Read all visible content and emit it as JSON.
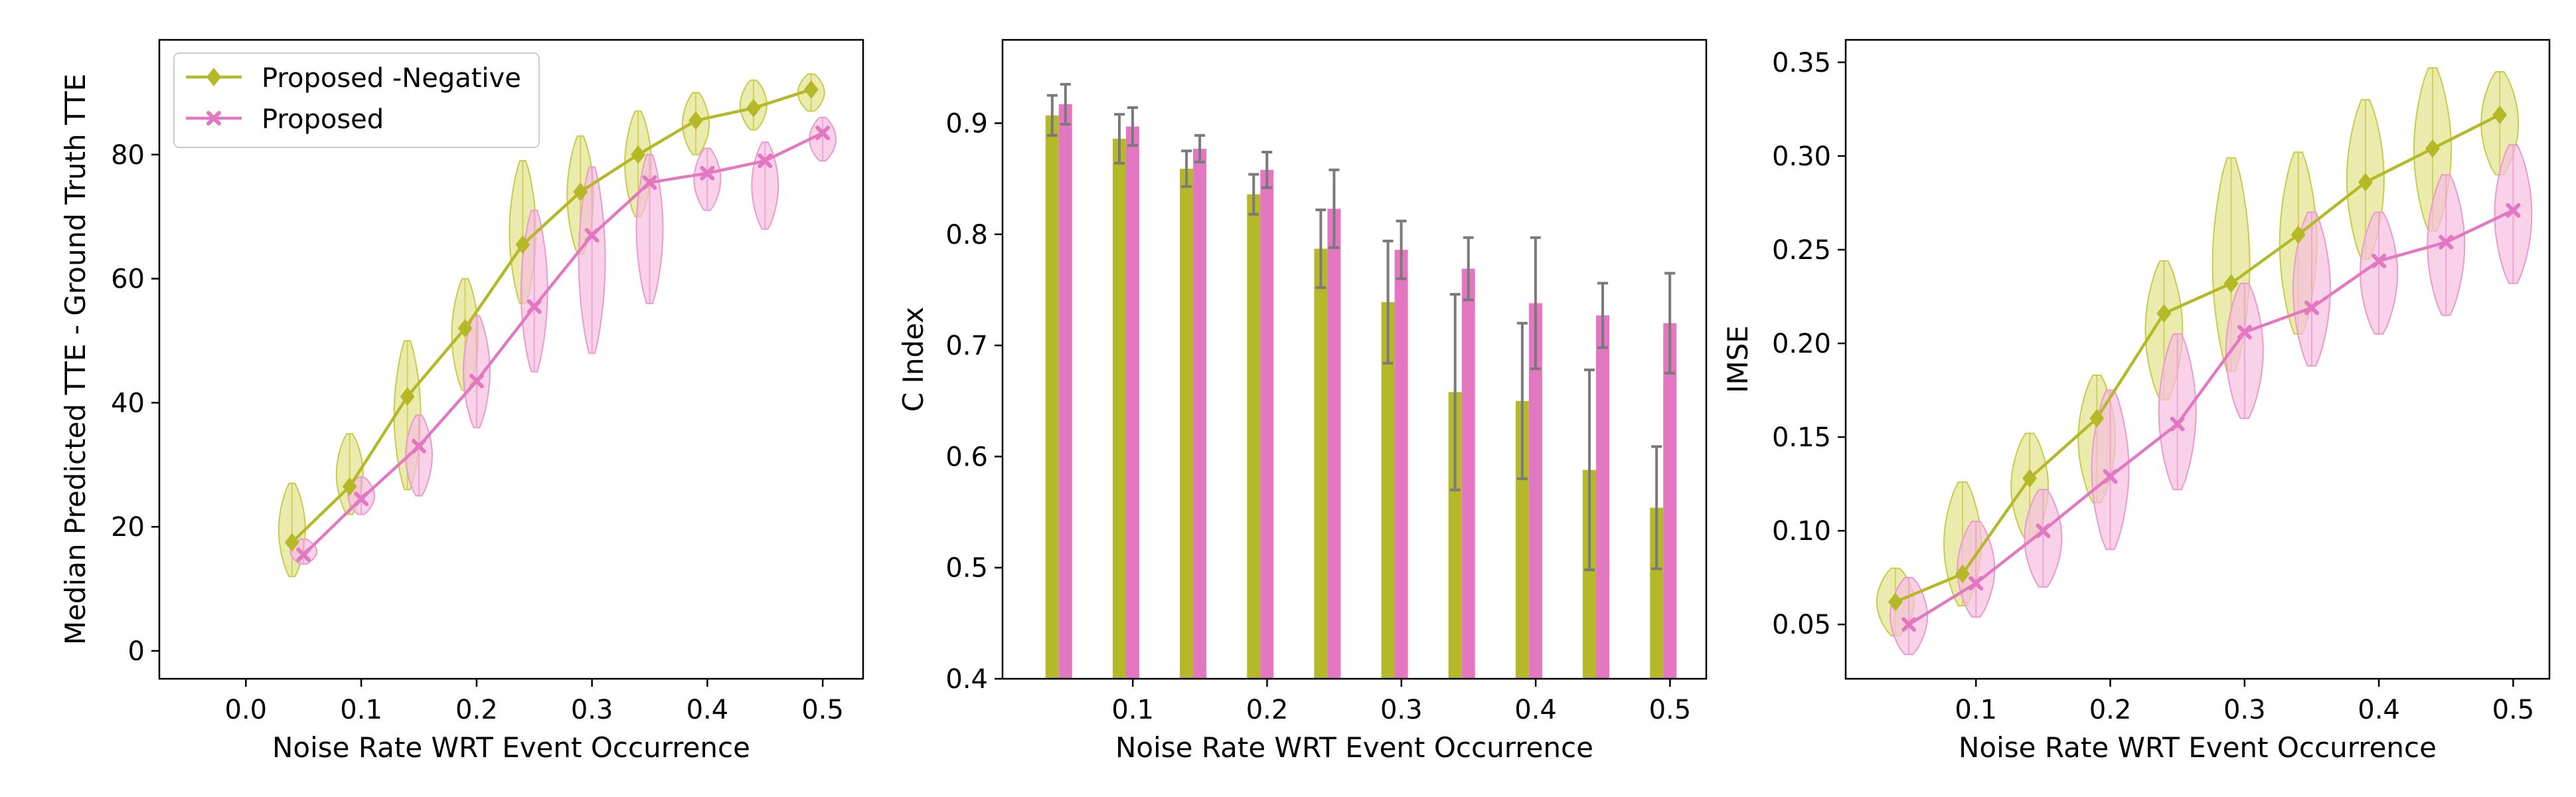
{
  "colors": {
    "proposed_negative": "#b5b927",
    "proposed": "#e377c2",
    "violin_negative_fill": "#e2e28c",
    "violin_negative_edge": "#c9cb4a",
    "violin_proposed_fill": "#f7bfdf",
    "violin_proposed_edge": "#ea9bce",
    "error_bar": "#7a7a7a"
  },
  "chart_data": [
    {
      "type": "line",
      "xlabel": "Noise Rate WRT Event Occurrence",
      "ylabel": "Median Predicted TTE - Ground Truth TTE",
      "xlim": [
        -0.075,
        0.535
      ],
      "ylim": [
        -4.5,
        98.5
      ],
      "xticks": [
        "0.0",
        "0.1",
        "0.2",
        "0.3",
        "0.4",
        "0.5"
      ],
      "yticks": [
        "0",
        "20",
        "40",
        "60",
        "80"
      ],
      "legend": {
        "placement": "top-left",
        "entries": [
          "Proposed -Negative",
          "Proposed"
        ]
      },
      "series": [
        {
          "name": "Proposed -Negative",
          "marker": "diamond",
          "x": [
            0.04,
            0.09,
            0.14,
            0.19,
            0.24,
            0.29,
            0.34,
            0.39,
            0.44,
            0.49
          ],
          "y": [
            17.5,
            26.5,
            41,
            52,
            65.5,
            74,
            80,
            85.5,
            87.5,
            90.5
          ],
          "violins": [
            [
              12,
              27
            ],
            [
              22,
              35
            ],
            [
              26,
              50
            ],
            [
              42,
              60
            ],
            [
              56,
              79
            ],
            [
              64,
              83
            ],
            [
              70,
              87
            ],
            [
              80,
              90
            ],
            [
              84,
              92
            ],
            [
              87,
              93
            ]
          ]
        },
        {
          "name": "Proposed",
          "marker": "x",
          "x": [
            0.05,
            0.1,
            0.15,
            0.2,
            0.25,
            0.3,
            0.35,
            0.4,
            0.45,
            0.5
          ],
          "y": [
            15.5,
            24.5,
            33,
            43.5,
            55.5,
            67,
            75.5,
            77,
            79,
            83.5
          ],
          "violins": [
            [
              14,
              18
            ],
            [
              22,
              28
            ],
            [
              25,
              38
            ],
            [
              36,
              54
            ],
            [
              45,
              71
            ],
            [
              48,
              78
            ],
            [
              56,
              80
            ],
            [
              71,
              81
            ],
            [
              68,
              82
            ],
            [
              79,
              86
            ]
          ]
        }
      ]
    },
    {
      "type": "bar",
      "xlabel": "Noise Rate WRT Event Occurrence",
      "ylabel": "C Index",
      "xlim": [
        0.003,
        0.527
      ],
      "ylim": [
        0.4,
        0.975
      ],
      "xticks": [
        "0.1",
        "0.2",
        "0.3",
        "0.4",
        "0.5"
      ],
      "yticks": [
        "0.4",
        "0.5",
        "0.6",
        "0.7",
        "0.8",
        "0.9"
      ],
      "x": [
        0.04,
        0.09,
        0.14,
        0.19,
        0.24,
        0.29,
        0.34,
        0.39,
        0.44,
        0.49
      ],
      "series": [
        {
          "name": "Proposed -Negative",
          "values": [
            0.907,
            0.886,
            0.859,
            0.836,
            0.787,
            0.739,
            0.658,
            0.65,
            0.588,
            0.554
          ],
          "errors": [
            0.018,
            0.022,
            0.016,
            0.018,
            0.035,
            0.055,
            0.088,
            0.07,
            0.09,
            0.055
          ]
        },
        {
          "name": "Proposed",
          "values": [
            0.917,
            0.897,
            0.877,
            0.858,
            0.823,
            0.786,
            0.769,
            0.738,
            0.727,
            0.72
          ],
          "errors": [
            0.018,
            0.017,
            0.012,
            0.016,
            0.035,
            0.026,
            0.028,
            0.059,
            0.029,
            0.045
          ]
        }
      ]
    },
    {
      "type": "line",
      "xlabel": "Noise Rate WRT Event Occurrence",
      "ylabel": "IMSE",
      "xlim": [
        0.003,
        0.527
      ],
      "ylim": [
        0.021,
        0.362
      ],
      "xticks": [
        "0.1",
        "0.2",
        "0.3",
        "0.4",
        "0.5"
      ],
      "yticks": [
        "0.05",
        "0.10",
        "0.15",
        "0.20",
        "0.25",
        "0.30",
        "0.35"
      ],
      "series": [
        {
          "name": "Proposed -Negative",
          "marker": "diamond",
          "x": [
            0.04,
            0.09,
            0.14,
            0.19,
            0.24,
            0.29,
            0.34,
            0.39,
            0.44,
            0.49
          ],
          "y": [
            0.062,
            0.077,
            0.128,
            0.16,
            0.216,
            0.232,
            0.258,
            0.286,
            0.304,
            0.322
          ],
          "violins": [
            [
              0.044,
              0.08
            ],
            [
              0.06,
              0.126
            ],
            [
              0.095,
              0.152
            ],
            [
              0.115,
              0.183
            ],
            [
              0.17,
              0.244
            ],
            [
              0.185,
              0.299
            ],
            [
              0.205,
              0.302
            ],
            [
              0.245,
              0.33
            ],
            [
              0.26,
              0.347
            ],
            [
              0.29,
              0.345
            ]
          ]
        },
        {
          "name": "Proposed",
          "marker": "x",
          "x": [
            0.05,
            0.1,
            0.15,
            0.2,
            0.25,
            0.3,
            0.35,
            0.4,
            0.45,
            0.5
          ],
          "y": [
            0.05,
            0.072,
            0.1,
            0.129,
            0.157,
            0.206,
            0.219,
            0.244,
            0.254,
            0.271
          ],
          "violins": [
            [
              0.034,
              0.075
            ],
            [
              0.054,
              0.105
            ],
            [
              0.07,
              0.122
            ],
            [
              0.09,
              0.175
            ],
            [
              0.122,
              0.205
            ],
            [
              0.16,
              0.232
            ],
            [
              0.188,
              0.27
            ],
            [
              0.205,
              0.27
            ],
            [
              0.215,
              0.29
            ],
            [
              0.232,
              0.306
            ]
          ]
        }
      ]
    }
  ]
}
